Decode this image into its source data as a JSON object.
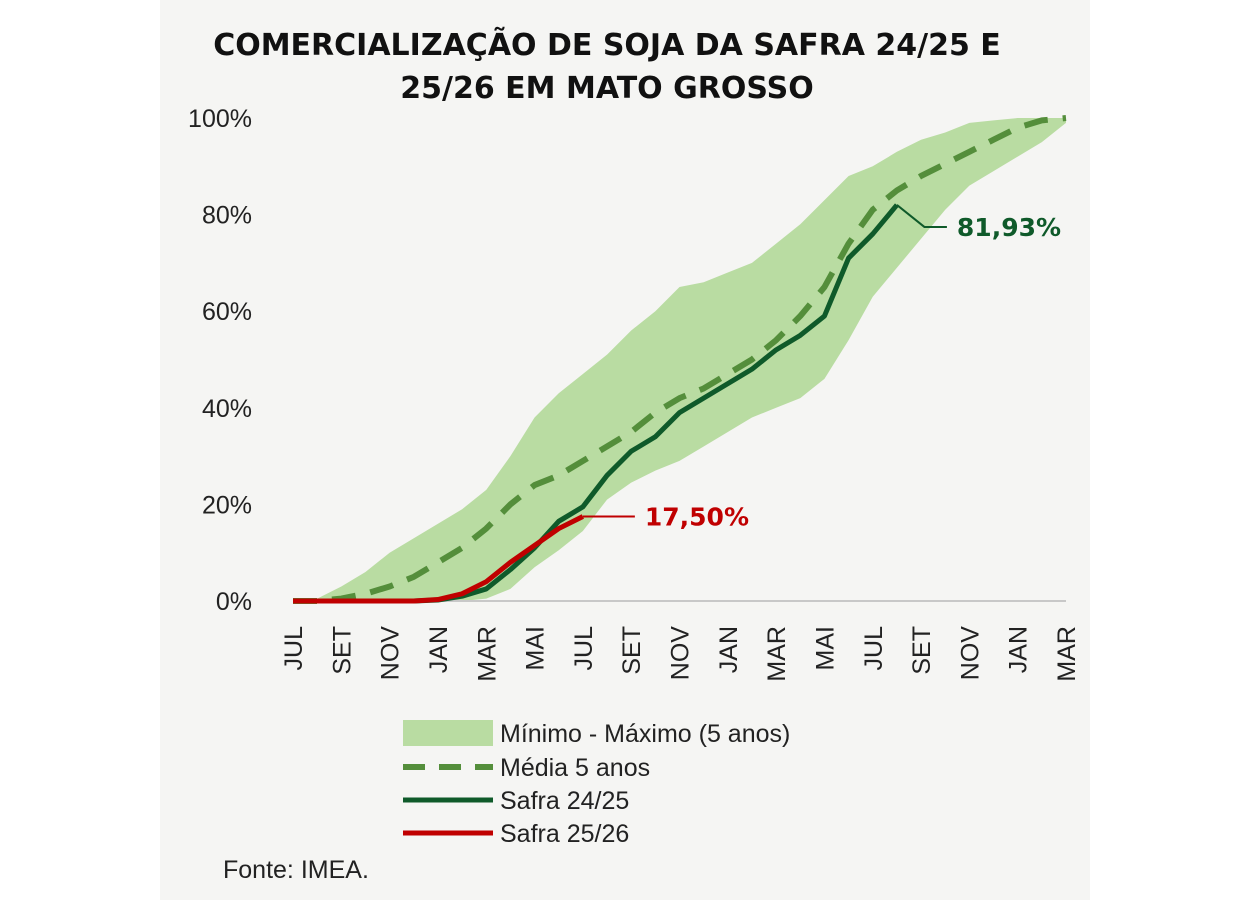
{
  "chart_data": {
    "type": "area",
    "title_lines": [
      "COMERCIALIZAÇÃO DE SOJA DA SAFRA 24/25 E",
      "25/26 EM MATO GROSSO"
    ],
    "ylim": [
      0,
      100
    ],
    "yticks": [
      "0%",
      "20%",
      "40%",
      "60%",
      "80%",
      "100%"
    ],
    "xlabels": [
      "JUL",
      "SET",
      "NOV",
      "JAN",
      "MAR",
      "MAI",
      "JUL",
      "SET",
      "NOV",
      "JAN",
      "MAR",
      "MAI",
      "JUL",
      "SET",
      "NOV",
      "JAN",
      "MAR"
    ],
    "x_months": [
      0,
      1,
      2,
      3,
      4,
      5,
      6,
      7,
      8,
      9,
      10,
      11,
      12,
      13,
      14,
      15,
      16,
      17,
      18,
      19,
      20,
      21,
      22,
      23,
      24,
      25,
      26,
      27,
      28,
      29,
      30,
      31,
      32
    ],
    "band_min": [
      0,
      0,
      0,
      0,
      0,
      0,
      0,
      0,
      0.5,
      2.5,
      7,
      10.5,
      14.5,
      21,
      24.5,
      27,
      29,
      32,
      35,
      38,
      40,
      42,
      46,
      54,
      63,
      69,
      75,
      81,
      86,
      89,
      92,
      95,
      99
    ],
    "band_max": [
      0,
      0.5,
      3,
      6,
      10,
      13,
      16,
      19,
      23,
      30,
      38,
      43,
      47,
      51,
      56,
      60,
      65,
      66,
      68,
      70,
      74,
      78,
      83,
      88,
      90,
      93,
      95.5,
      97,
      99,
      99.5,
      100,
      100,
      100
    ],
    "series": [
      {
        "name": "Média 5 anos",
        "values": [
          0,
          0,
          0.5,
          1.5,
          3,
          5,
          8,
          11,
          15,
          20,
          24,
          26,
          29,
          32,
          35,
          39,
          42,
          44,
          47,
          50,
          54,
          59,
          65,
          74,
          81,
          85,
          88,
          90.5,
          93,
          95.5,
          98,
          99.5,
          100
        ]
      },
      {
        "name": "Safra 24/25",
        "values": [
          0,
          0,
          0,
          0,
          0,
          0,
          0.2,
          1,
          2.5,
          6.5,
          11,
          16.5,
          19.5,
          26,
          31,
          34,
          39,
          42,
          45,
          48,
          52,
          55,
          59,
          71,
          76,
          82
        ]
      },
      {
        "name": "Safra 25/26",
        "values": [
          0,
          0,
          0,
          0,
          0,
          0,
          0.3,
          1.5,
          4,
          8,
          11.5,
          15,
          17.5
        ]
      }
    ],
    "annotations": [
      {
        "text": "81,93%",
        "series": "Safra 24/25"
      },
      {
        "text": "17,50%",
        "series": "Safra 25/26"
      }
    ],
    "legend": {
      "placement": "bottom",
      "items": [
        {
          "label": "Mínimo - Máximo (5 anos)",
          "kind": "band"
        },
        {
          "label": "Média 5 anos",
          "kind": "dash"
        },
        {
          "label": "Safra 24/25",
          "kind": "line"
        },
        {
          "label": "Safra 25/26",
          "kind": "line"
        }
      ]
    },
    "colors": {
      "band": "#b9dca2",
      "media": "#548e3b",
      "safra2425": "#0f5a2a",
      "safra2526": "#c00000",
      "axis": "#c8c8c8"
    },
    "source": "Fonte: IMEA."
  }
}
